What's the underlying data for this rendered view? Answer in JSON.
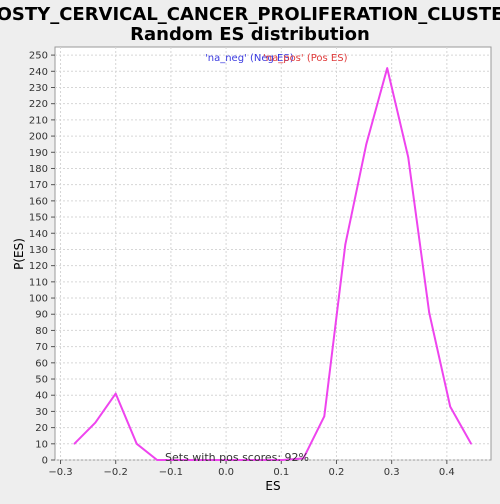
{
  "chart_data": {
    "type": "line",
    "title_line1": "ROSTY_CERVICAL_CANCER_PROLIFERATION_CLUSTER",
    "title_line2": "Random ES distribution",
    "xlabel": "ES",
    "ylabel": "P(ES)",
    "xlim": [
      -0.31,
      0.48
    ],
    "ylim": [
      0,
      255
    ],
    "xticks": [
      -0.3,
      -0.2,
      -0.1,
      0.0,
      0.1,
      0.2,
      0.3,
      0.4
    ],
    "xtick_labels": [
      "−0.3",
      "−0.2",
      "−0.1",
      "0.0",
      "0.1",
      "0.2",
      "0.3",
      "0.4"
    ],
    "yticks": [
      0,
      10,
      20,
      30,
      40,
      50,
      60,
      70,
      80,
      90,
      100,
      110,
      120,
      130,
      140,
      150,
      160,
      170,
      180,
      190,
      200,
      210,
      220,
      230,
      240,
      250
    ],
    "grid": true,
    "legend": {
      "placement": "top-center",
      "neg_label": "'na_neg' (Neg ES)",
      "pos_label": "'na_pos' (Pos ES)",
      "neg_color": "#3a3ae0",
      "pos_color": "#e03a3a"
    },
    "annotation": "Sets with pos scores: 92%",
    "series": [
      {
        "color": "#ee44ee",
        "x": [
          -0.275,
          -0.237,
          -0.2,
          -0.162,
          -0.125,
          -0.087,
          -0.05,
          -0.012,
          0.026,
          0.064,
          0.102,
          0.14,
          0.178,
          0.216,
          0.254,
          0.292,
          0.33,
          0.368,
          0.406,
          0.444
        ],
        "y": [
          10,
          23,
          41,
          10,
          0,
          0,
          0,
          0,
          0,
          0,
          0,
          1,
          27,
          133,
          195,
          242,
          187,
          91,
          33,
          10
        ]
      }
    ]
  }
}
